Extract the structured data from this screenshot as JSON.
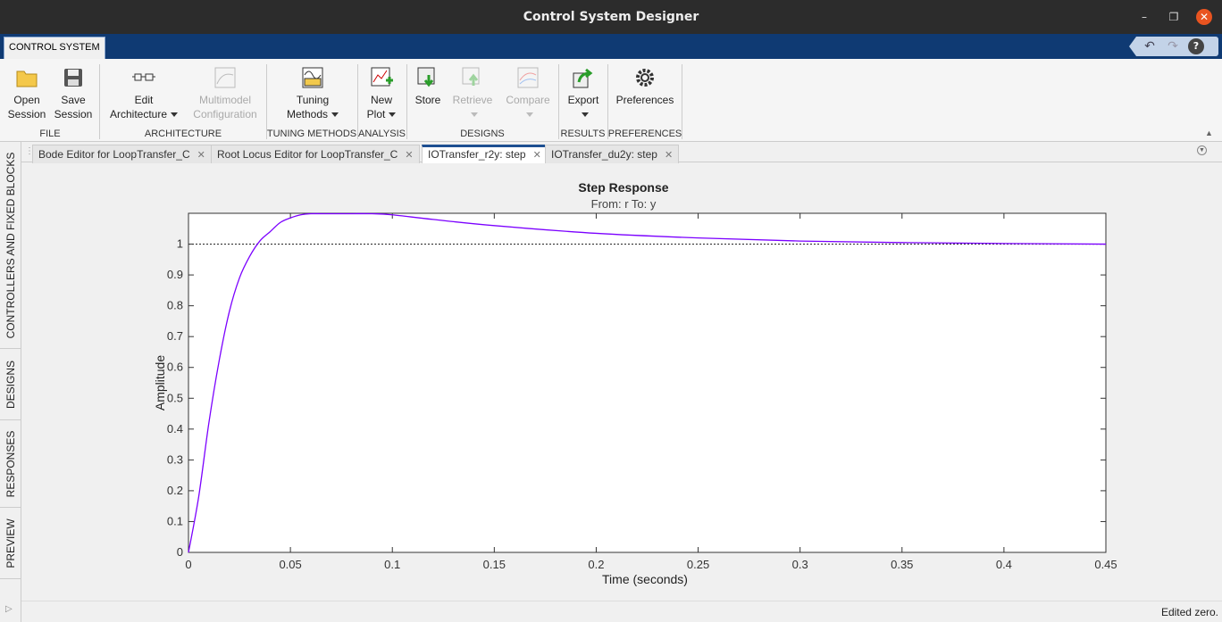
{
  "window": {
    "title": "Control System Designer"
  },
  "ribbon_tab": {
    "label": "CONTROL SYSTEM"
  },
  "ribbon": {
    "open_session": {
      "line1": "Open",
      "line2": "Session"
    },
    "save_session": {
      "line1": "Save",
      "line2": "Session"
    },
    "edit_architecture": {
      "line1": "Edit",
      "line2": "Architecture"
    },
    "multimodel_configuration": {
      "line1": "Multimodel",
      "line2": "Configuration"
    },
    "tuning_methods": {
      "line1": "Tuning",
      "line2": "Methods"
    },
    "new_plot": {
      "line1": "New",
      "line2": "Plot"
    },
    "store": {
      "line1": "Store"
    },
    "retrieve": {
      "line1": "Retrieve"
    },
    "compare": {
      "line1": "Compare"
    },
    "export": {
      "line1": "Export"
    },
    "preferences": {
      "line1": "Preferences"
    },
    "groups": {
      "file": "FILE",
      "architecture": "ARCHITECTURE",
      "tuning_methods": "TUNING METHODS",
      "analysis": "ANALYSIS",
      "designs": "DESIGNS",
      "results": "RESULTS",
      "preferences": "PREFERENCES"
    }
  },
  "side_tabs": {
    "controllers": "CONTROLLERS AND FIXED BLOCKS",
    "designs": "DESIGNS",
    "responses": "RESPONSES",
    "preview": "PREVIEW"
  },
  "doc_tabs": [
    {
      "label": "Bode Editor for LoopTransfer_C",
      "active": false
    },
    {
      "label": "Root Locus Editor for LoopTransfer_C",
      "active": false
    },
    {
      "label": "IOTransfer_r2y: step",
      "active": true
    },
    {
      "label": "IOTransfer_du2y: step",
      "active": false
    }
  ],
  "status": {
    "text": "Edited zero."
  },
  "chart_data": {
    "type": "line",
    "title": "Step Response",
    "subtitle": "From: r  To: y",
    "xlabel": "Time (seconds)",
    "ylabel": "Amplitude",
    "xlim": [
      0,
      0.45
    ],
    "ylim": [
      0,
      1.1
    ],
    "xticks": [
      "0",
      "0.05",
      "0.1",
      "0.15",
      "0.2",
      "0.25",
      "0.3",
      "0.35",
      "0.4",
      "0.45"
    ],
    "yticks": [
      "0",
      "0.1",
      "0.2",
      "0.3",
      "0.4",
      "0.5",
      "0.6",
      "0.7",
      "0.8",
      "0.9",
      "1"
    ],
    "reference_line": {
      "y": 1,
      "style": "dotted"
    },
    "grid": false,
    "colors": {
      "series": "#7b00ff",
      "reference": "#333333"
    },
    "series": [
      {
        "x": [
          0,
          0.005,
          0.01,
          0.015,
          0.02,
          0.025,
          0.03,
          0.035,
          0.04,
          0.045,
          0.05,
          0.055,
          0.06,
          0.065,
          0.07,
          0.075,
          0.08,
          0.09,
          0.1,
          0.12,
          0.15,
          0.2,
          0.25,
          0.3,
          0.35,
          0.4,
          0.45
        ],
        "y": [
          0,
          0.18,
          0.42,
          0.62,
          0.78,
          0.89,
          0.96,
          1.01,
          1.04,
          1.07,
          1.085,
          1.095,
          1.1,
          1.102,
          1.103,
          1.103,
          1.103,
          1.1,
          1.095,
          1.08,
          1.06,
          1.035,
          1.02,
          1.01,
          1.005,
          1.002,
          1.0
        ]
      }
    ]
  }
}
